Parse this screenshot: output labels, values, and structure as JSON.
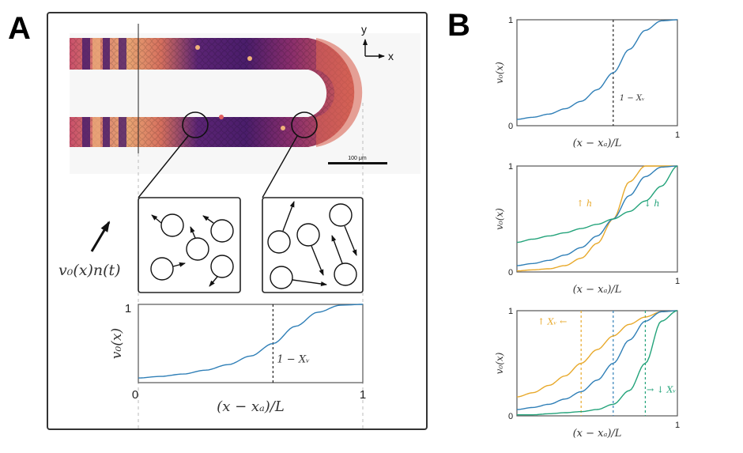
{
  "panels": {
    "A": {
      "label": "A"
    },
    "B": {
      "label": "B"
    }
  },
  "colors": {
    "blue": "#2f7fb7",
    "orange": "#e8a92b",
    "green": "#23a37a",
    "frame": "#333333",
    "cell_light": "#f0b27a",
    "cell_mid": "#d9574f",
    "cell_dark": "#4b1d6b"
  },
  "micrograph": {
    "axes": {
      "y_label": "y",
      "x_label": "x"
    },
    "scale_bar": "100 μm",
    "description": "U-shaped channel of packed cells colored by activity"
  },
  "insets": {
    "left": {
      "particles": 5,
      "description": "low activity: short velocity arrows"
    },
    "right": {
      "particles": 5,
      "description": "high activity: long velocity arrows"
    }
  },
  "velocity_label": "v₀(x)n(t)",
  "chart_data": [
    {
      "id": "A-bottom",
      "type": "line",
      "title": "",
      "xlabel": "(x − xₐ)/L",
      "ylabel": "v₀(x)",
      "xlim": [
        0,
        1
      ],
      "ylim": [
        0,
        1
      ],
      "xticks": [
        "0",
        "1"
      ],
      "yticks": [
        "1"
      ],
      "vlines": [
        {
          "x": 0.6,
          "color": "#222222",
          "label": "1 − Xᵥ"
        }
      ],
      "series": [
        {
          "name": "baseline",
          "color": "#2f7fb7",
          "x0": 0.6,
          "h": 1.0,
          "x": [
            0,
            0.1,
            0.2,
            0.3,
            0.4,
            0.5,
            0.6,
            0.7,
            0.8,
            0.9,
            1.0
          ],
          "y": [
            0.06,
            0.08,
            0.11,
            0.16,
            0.23,
            0.34,
            0.5,
            0.72,
            0.9,
            0.99,
            1.0
          ]
        }
      ]
    },
    {
      "id": "B-top",
      "type": "line",
      "title": "",
      "xlabel": "(x − xₐ)/L",
      "ylabel": "v₀(x)",
      "xlim": [
        0,
        1
      ],
      "ylim": [
        0,
        1
      ],
      "xticks": [
        "1"
      ],
      "yticks": [
        "0",
        "1"
      ],
      "vlines": [
        {
          "x": 0.6,
          "color": "#222222",
          "label": "1 − Xᵥ"
        }
      ],
      "series": [
        {
          "name": "baseline",
          "color": "#2f7fb7",
          "x0": 0.6,
          "h": 1.0,
          "x": [
            0,
            0.1,
            0.2,
            0.3,
            0.4,
            0.5,
            0.6,
            0.7,
            0.8,
            0.9,
            1.0
          ],
          "y": [
            0.06,
            0.08,
            0.11,
            0.16,
            0.23,
            0.34,
            0.5,
            0.72,
            0.9,
            0.99,
            1.0
          ]
        }
      ]
    },
    {
      "id": "B-middle",
      "type": "line",
      "title": "",
      "xlabel": "(x − xₐ)/L",
      "ylabel": "v₀(x)",
      "xlim": [
        0,
        1
      ],
      "ylim": [
        0,
        1
      ],
      "xticks": [
        "1"
      ],
      "yticks": [
        "0",
        "1"
      ],
      "vlines": [],
      "annotations": [
        {
          "text": "↑ h",
          "color": "#e8a92b",
          "x": 0.42,
          "y": 0.62
        },
        {
          "text": "↓ h",
          "color": "#23a37a",
          "x": 0.84,
          "y": 0.62
        }
      ],
      "series": [
        {
          "name": "high h",
          "color": "#e8a92b",
          "x0": 0.6,
          "h": 1.6,
          "x": [
            0,
            0.1,
            0.2,
            0.3,
            0.4,
            0.5,
            0.6,
            0.7,
            0.8,
            0.9,
            1.0
          ],
          "y": [
            0.01,
            0.02,
            0.03,
            0.06,
            0.13,
            0.27,
            0.5,
            0.85,
            1.0,
            1.0,
            1.0
          ]
        },
        {
          "name": "baseline",
          "color": "#2f7fb7",
          "x0": 0.6,
          "h": 1.0,
          "x": [
            0,
            0.1,
            0.2,
            0.3,
            0.4,
            0.5,
            0.6,
            0.7,
            0.8,
            0.9,
            1.0
          ],
          "y": [
            0.06,
            0.08,
            0.11,
            0.16,
            0.23,
            0.34,
            0.5,
            0.72,
            0.9,
            0.99,
            1.0
          ]
        },
        {
          "name": "low h",
          "color": "#23a37a",
          "x0": 0.6,
          "h": 0.4,
          "x": [
            0,
            0.1,
            0.2,
            0.3,
            0.4,
            0.5,
            0.6,
            0.7,
            0.8,
            0.9,
            1.0
          ],
          "y": [
            0.28,
            0.31,
            0.34,
            0.37,
            0.41,
            0.45,
            0.5,
            0.57,
            0.67,
            0.81,
            1.0
          ]
        }
      ]
    },
    {
      "id": "B-bottom",
      "type": "line",
      "title": "",
      "xlabel": "(x − xₐ)/L",
      "ylabel": "v₀(x)",
      "xlim": [
        0,
        1
      ],
      "ylim": [
        0,
        1
      ],
      "xticks": [
        "1"
      ],
      "yticks": [
        "0",
        "1"
      ],
      "vlines": [
        {
          "x": 0.4,
          "color": "#e8a92b"
        },
        {
          "x": 0.6,
          "color": "#2f7fb7"
        },
        {
          "x": 0.8,
          "color": "#23a37a"
        }
      ],
      "annotations": [
        {
          "text": "↑ Xᵥ ←",
          "color": "#e8a92b",
          "x": 0.22,
          "y": 0.87
        },
        {
          "text": "→ ↓ Xᵥ",
          "color": "#23a37a",
          "x": 0.9,
          "y": 0.22
        }
      ],
      "series": [
        {
          "name": "high Xv",
          "color": "#e8a92b",
          "x0": 0.4,
          "h": 1.0,
          "x": [
            0,
            0.1,
            0.2,
            0.3,
            0.4,
            0.5,
            0.6,
            0.7,
            0.8,
            0.9,
            1.0
          ],
          "y": [
            0.18,
            0.22,
            0.29,
            0.38,
            0.5,
            0.63,
            0.76,
            0.87,
            0.94,
            0.99,
            1.0
          ]
        },
        {
          "name": "baseline",
          "color": "#2f7fb7",
          "x0": 0.6,
          "h": 1.0,
          "x": [
            0,
            0.1,
            0.2,
            0.3,
            0.4,
            0.5,
            0.6,
            0.7,
            0.8,
            0.9,
            1.0
          ],
          "y": [
            0.06,
            0.08,
            0.11,
            0.16,
            0.23,
            0.34,
            0.5,
            0.72,
            0.9,
            0.99,
            1.0
          ]
        },
        {
          "name": "low Xv",
          "color": "#23a37a",
          "x0": 0.8,
          "h": 1.2,
          "x": [
            0,
            0.1,
            0.2,
            0.3,
            0.4,
            0.5,
            0.6,
            0.7,
            0.8,
            0.9,
            1.0
          ],
          "y": [
            0.01,
            0.01,
            0.02,
            0.03,
            0.04,
            0.06,
            0.11,
            0.24,
            0.5,
            0.9,
            1.0
          ]
        }
      ]
    }
  ]
}
